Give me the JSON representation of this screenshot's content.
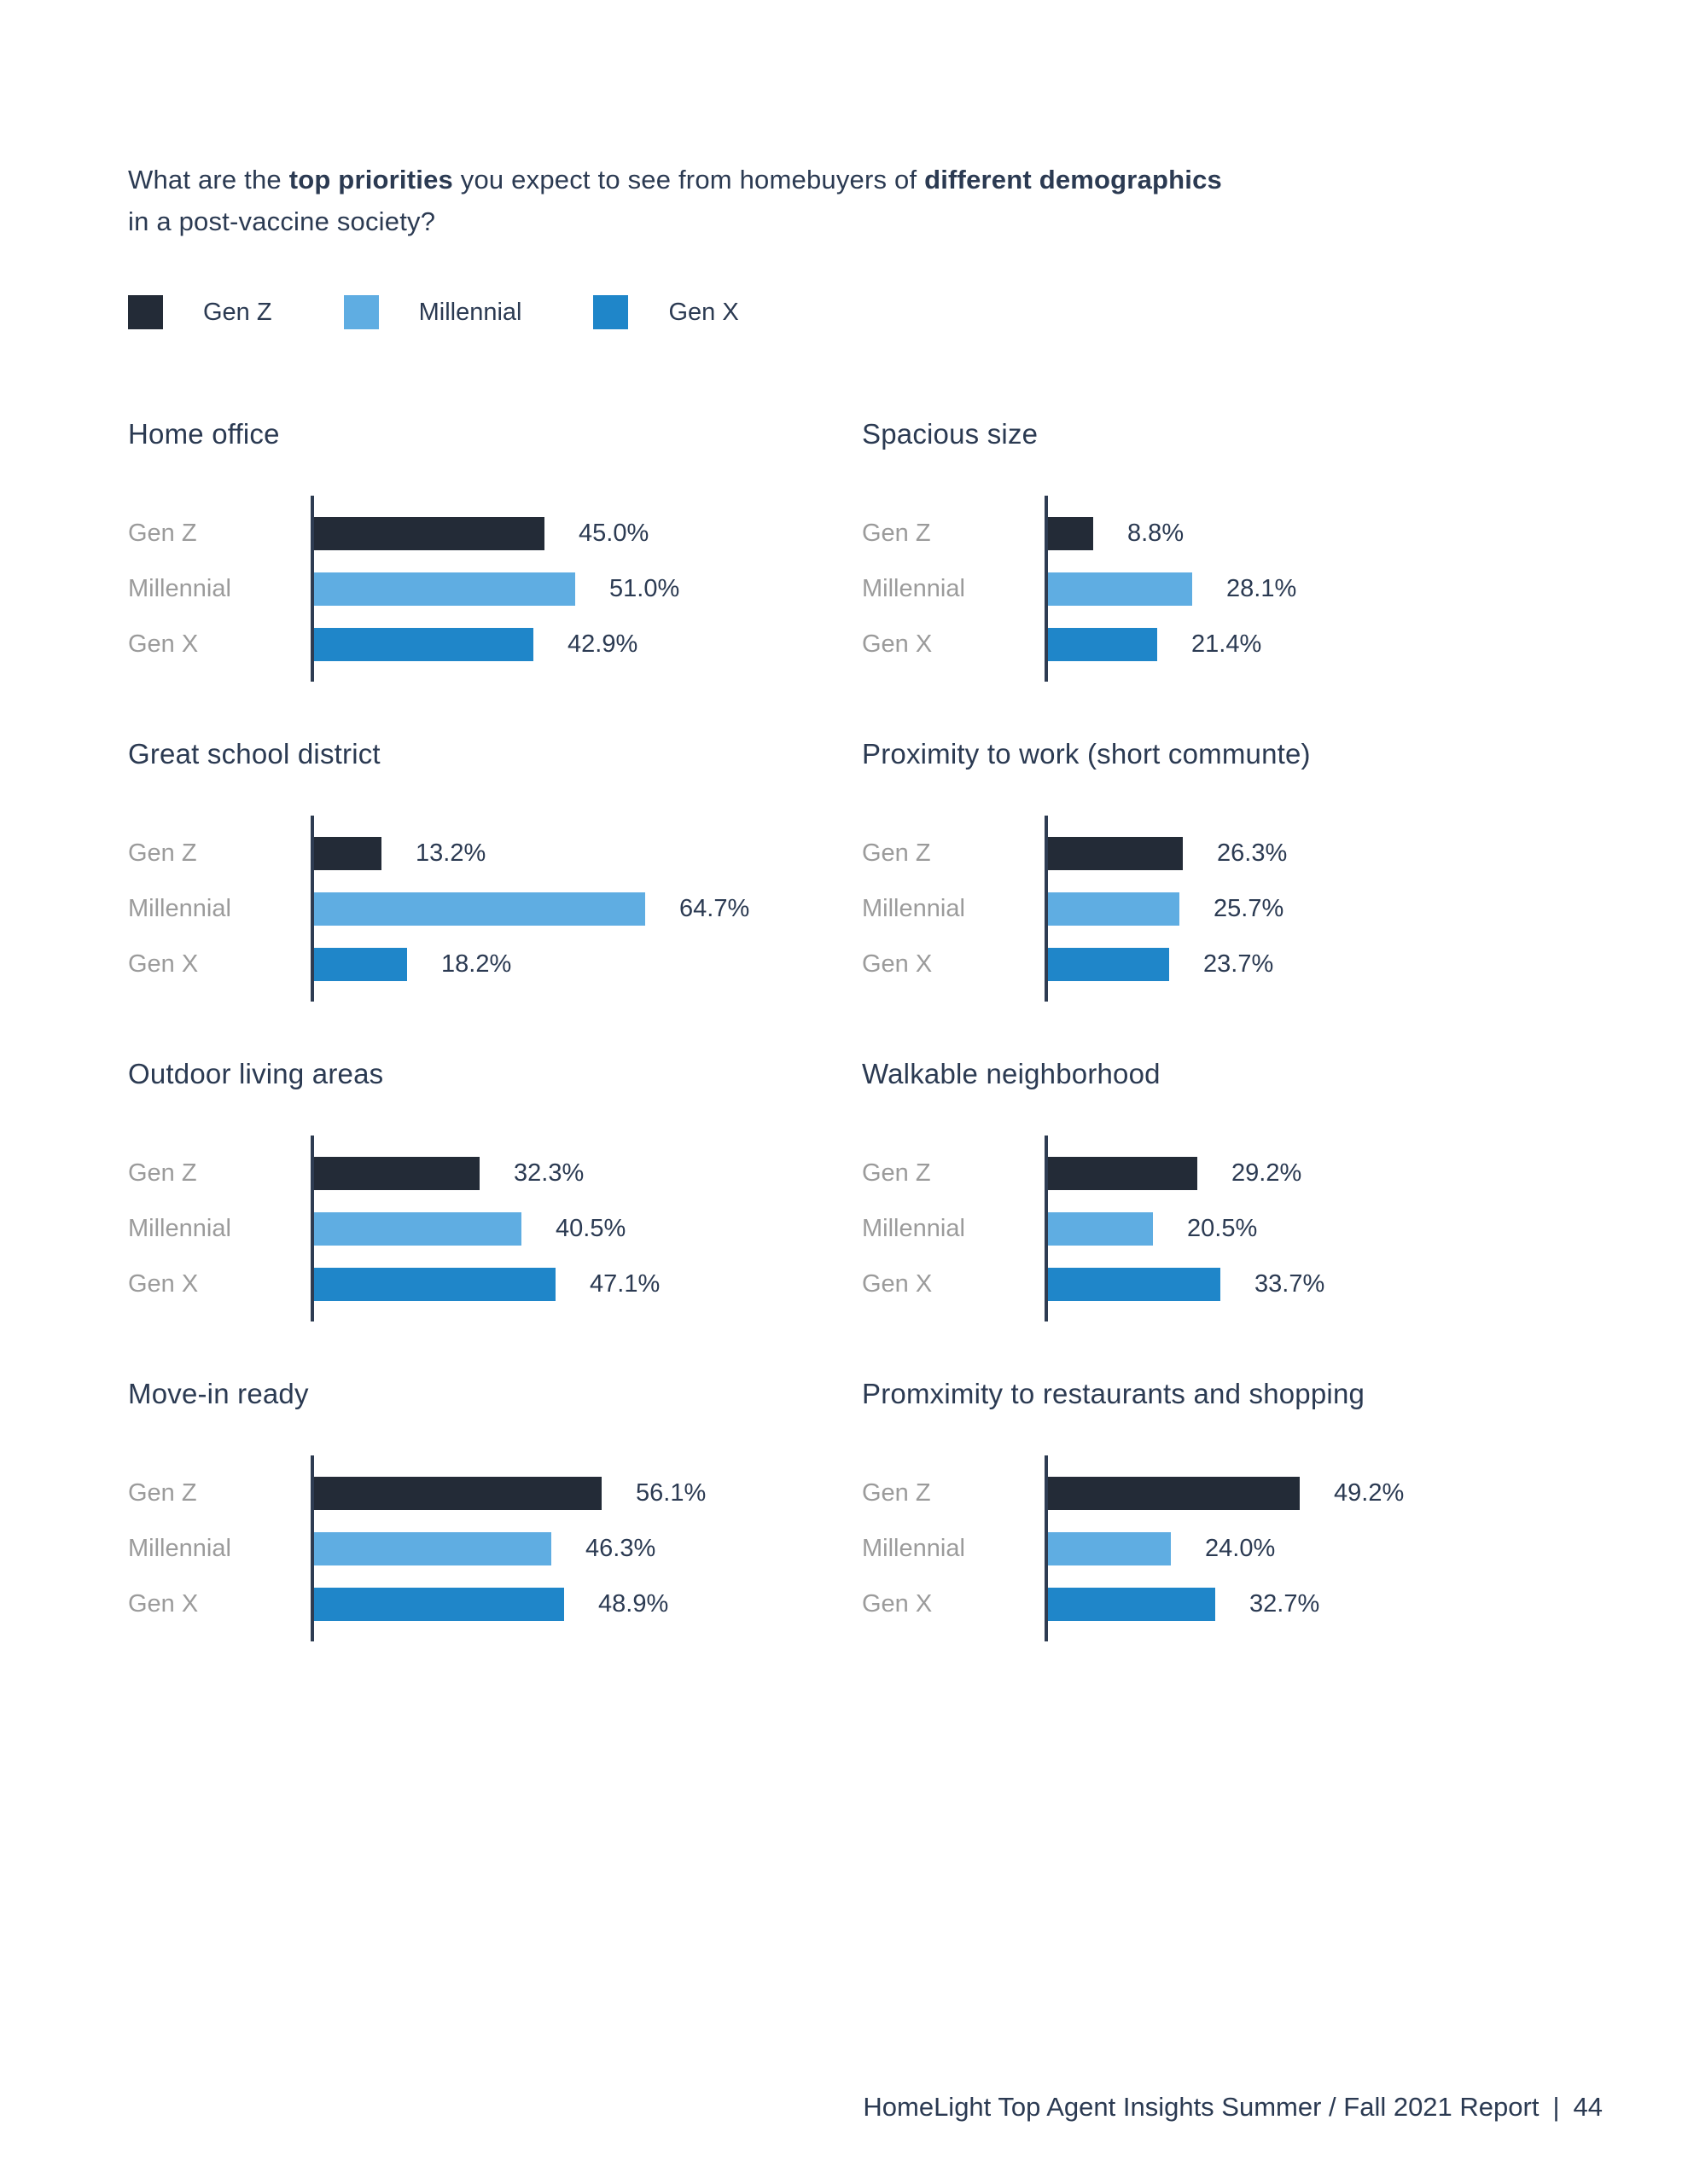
{
  "question": {
    "lines": [
      {
        "segments": [
          {
            "text": "What are the ",
            "bold": false
          },
          {
            "text": "top priorities",
            "bold": true
          },
          {
            "text": " you expect to see from homebuyers of ",
            "bold": false
          },
          {
            "text": "different demographics",
            "bold": true
          }
        ]
      },
      {
        "segments": [
          {
            "text": "in a post-vaccine society?",
            "bold": false
          }
        ]
      }
    ]
  },
  "legend": {
    "items": [
      {
        "label": "Gen Z",
        "color": "#232B37"
      },
      {
        "label": "Millennial",
        "color": "#5FADE2"
      },
      {
        "label": "Gen X",
        "color": "#1F86C9"
      }
    ]
  },
  "chart_data": [
    {
      "type": "bar",
      "orientation": "horizontal",
      "title": "Home office",
      "categories": [
        "Gen Z",
        "Millennial",
        "Gen X"
      ],
      "values": [
        45.0,
        51.0,
        42.9
      ],
      "value_labels": [
        "45.0%",
        "51.0%",
        "42.9%"
      ],
      "xlim": [
        0,
        70
      ],
      "grid": false,
      "legend_position": "top-of-page"
    },
    {
      "type": "bar",
      "orientation": "horizontal",
      "title": "Spacious size",
      "categories": [
        "Gen Z",
        "Millennial",
        "Gen X"
      ],
      "values": [
        8.8,
        28.1,
        21.4
      ],
      "value_labels": [
        "8.8%",
        "28.1%",
        "21.4%"
      ],
      "xlim": [
        0,
        70
      ],
      "grid": false
    },
    {
      "type": "bar",
      "orientation": "horizontal",
      "title": "Great school district",
      "categories": [
        "Gen Z",
        "Millennial",
        "Gen X"
      ],
      "values": [
        13.2,
        64.7,
        18.2
      ],
      "value_labels": [
        "13.2%",
        "64.7%",
        "18.2%"
      ],
      "xlim": [
        0,
        70
      ],
      "grid": false
    },
    {
      "type": "bar",
      "orientation": "horizontal",
      "title": "Proximity to work (short communte)",
      "categories": [
        "Gen Z",
        "Millennial",
        "Gen X"
      ],
      "values": [
        26.3,
        25.7,
        23.7
      ],
      "value_labels": [
        "26.3%",
        "25.7%",
        "23.7%"
      ],
      "xlim": [
        0,
        70
      ],
      "grid": false
    },
    {
      "type": "bar",
      "orientation": "horizontal",
      "title": "Outdoor living areas",
      "categories": [
        "Gen Z",
        "Millennial",
        "Gen X"
      ],
      "values": [
        32.3,
        40.5,
        47.1
      ],
      "value_labels": [
        "32.3%",
        "40.5%",
        "47.1%"
      ],
      "xlim": [
        0,
        70
      ],
      "grid": false
    },
    {
      "type": "bar",
      "orientation": "horizontal",
      "title": "Walkable neighborhood",
      "categories": [
        "Gen Z",
        "Millennial",
        "Gen X"
      ],
      "values": [
        29.2,
        20.5,
        33.7
      ],
      "value_labels": [
        "29.2%",
        "20.5%",
        "33.7%"
      ],
      "xlim": [
        0,
        70
      ],
      "grid": false
    },
    {
      "type": "bar",
      "orientation": "horizontal",
      "title": "Move-in ready",
      "categories": [
        "Gen Z",
        "Millennial",
        "Gen X"
      ],
      "values": [
        56.1,
        46.3,
        48.9
      ],
      "value_labels": [
        "56.1%",
        "46.3%",
        "48.9%"
      ],
      "xlim": [
        0,
        70
      ],
      "grid": false
    },
    {
      "type": "bar",
      "orientation": "horizontal",
      "title": "Promximity to restaurants and shopping",
      "categories": [
        "Gen Z",
        "Millennial",
        "Gen X"
      ],
      "values": [
        49.2,
        24.0,
        32.7
      ],
      "value_labels": [
        "49.2%",
        "24.0%",
        "32.7%"
      ],
      "xlim": [
        0,
        70
      ],
      "grid": false
    }
  ],
  "colors": {
    "text_navy": "#2B3A52",
    "axis_navy": "#2E3C52",
    "row_label_gray": "#9B9B9B",
    "gen_z": "#232B37",
    "millennial": "#5FADE2",
    "gen_x": "#1F86C9",
    "background": "#FFFFFF"
  },
  "footer": {
    "text": "HomeLight Top Agent Insights Summer / Fall 2021 Report",
    "separator": "|",
    "page_number": "44"
  }
}
